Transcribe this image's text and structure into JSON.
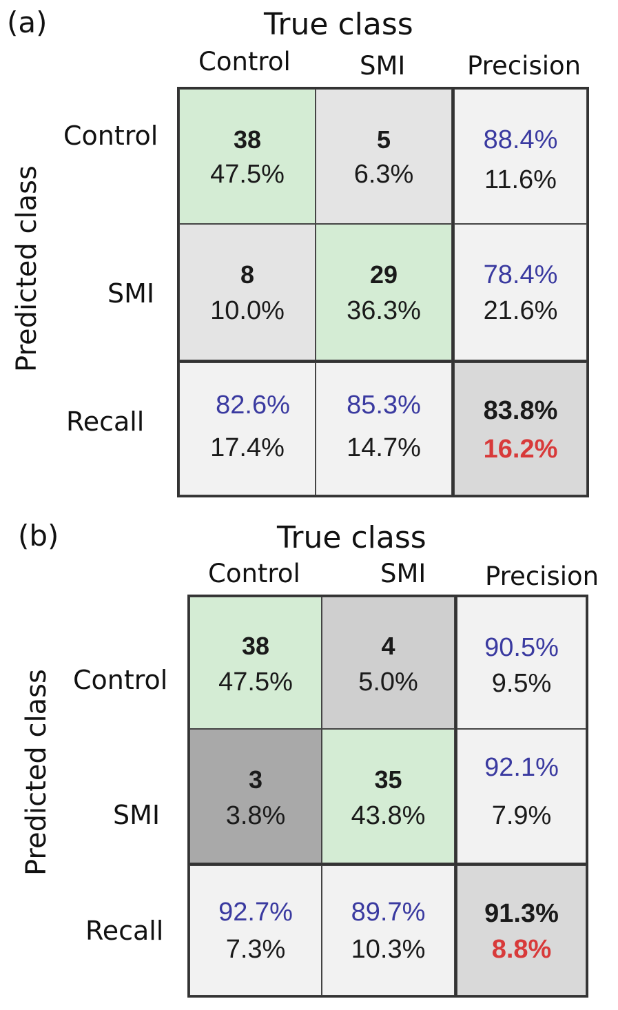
{
  "chart_data": [
    {
      "type": "table",
      "panel_label": "(a)",
      "x_title": "True class",
      "y_title": "Predicted class",
      "columns": [
        "Control",
        "SMI",
        "Precision"
      ],
      "rows": [
        "Control",
        "SMI",
        "Recall"
      ],
      "cells": [
        [
          {
            "top": "38",
            "bottom": "47.5%"
          },
          {
            "top": "5",
            "bottom": "6.3%"
          },
          {
            "top": "88.4%",
            "bottom": "11.6%"
          }
        ],
        [
          {
            "top": "8",
            "bottom": "10.0%"
          },
          {
            "top": "29",
            "bottom": "36.3%"
          },
          {
            "top": "78.4%",
            "bottom": "21.6%"
          }
        ],
        [
          {
            "top": "82.6%",
            "bottom": "17.4%"
          },
          {
            "top": "85.3%",
            "bottom": "14.7%"
          },
          {
            "top": "83.8%",
            "bottom": "16.2%"
          }
        ]
      ]
    },
    {
      "type": "table",
      "panel_label": "(b)",
      "x_title": "True class",
      "y_title": "Predicted class",
      "columns": [
        "Control",
        "SMI",
        "Precision"
      ],
      "rows": [
        "Control",
        "SMI",
        "Recall"
      ],
      "cells": [
        [
          {
            "top": "38",
            "bottom": "47.5%"
          },
          {
            "top": "4",
            "bottom": "5.0%"
          },
          {
            "top": "90.5%",
            "bottom": "9.5%"
          }
        ],
        [
          {
            "top": "3",
            "bottom": "3.8%"
          },
          {
            "top": "35",
            "bottom": "43.8%"
          },
          {
            "top": "92.1%",
            "bottom": "7.9%"
          }
        ],
        [
          {
            "top": "92.7%",
            "bottom": "7.3%"
          },
          {
            "top": "89.7%",
            "bottom": "10.3%"
          },
          {
            "top": "91.3%",
            "bottom": "8.8%"
          }
        ]
      ]
    }
  ],
  "colors": {
    "correct": "#d4ecd4",
    "error_a": "#e4e4e4",
    "error_b1": "#cfcfcf",
    "error_b2": "#a9a9a9",
    "summary": "#f2f2f2",
    "overall": "#d9d9d9",
    "percent_blue": "#3a3aa0",
    "error_red": "#d83a3a"
  }
}
